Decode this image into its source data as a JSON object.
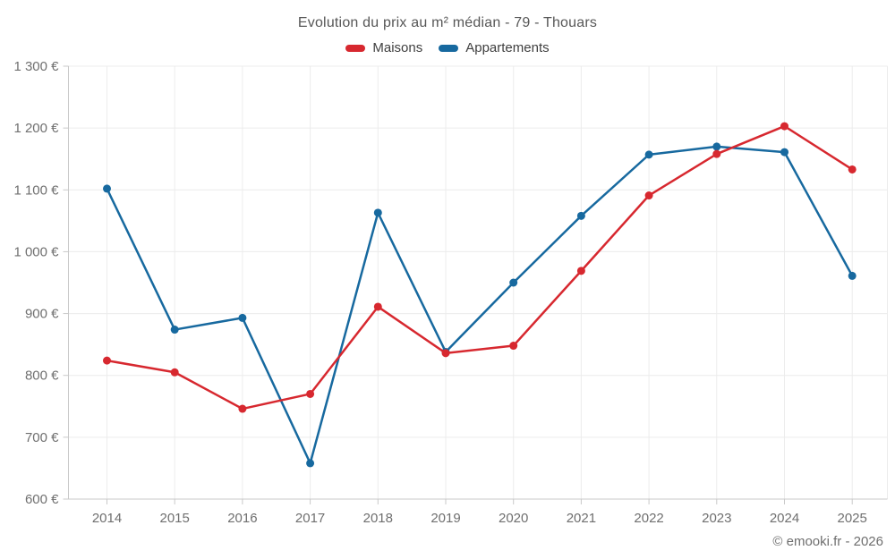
{
  "chart_data": {
    "type": "line",
    "title": "Evolution du prix au m² médian - 79 - Thouars",
    "categories": [
      "2014",
      "2015",
      "2016",
      "2017",
      "2018",
      "2019",
      "2020",
      "2021",
      "2022",
      "2023",
      "2024",
      "2025"
    ],
    "series": [
      {
        "name": "Maisons",
        "color": "#d7282f",
        "values": [
          824,
          805,
          746,
          770,
          911,
          836,
          848,
          969,
          1091,
          1158,
          1203,
          1133
        ]
      },
      {
        "name": "Appartements",
        "color": "#17699f",
        "values": [
          1102,
          874,
          893,
          658,
          1063,
          838,
          950,
          1058,
          1157,
          1170,
          1161,
          961
        ]
      }
    ],
    "ylim": [
      600,
      1300
    ],
    "y_ticks": [
      {
        "value": 600,
        "label": "600 €"
      },
      {
        "value": 700,
        "label": "700 €"
      },
      {
        "value": 800,
        "label": "800 €"
      },
      {
        "value": 900,
        "label": "900 €"
      },
      {
        "value": 1000,
        "label": "1 000 €"
      },
      {
        "value": 1100,
        "label": "1 100 €"
      },
      {
        "value": 1200,
        "label": "1 200 €"
      },
      {
        "value": 1300,
        "label": "1 300 €"
      }
    ],
    "grid": true,
    "legend_position": "top",
    "footer": "© emooki.fr - 2026",
    "colors": {
      "grid_line": "#ececec",
      "axis_line": "#c9c9c9",
      "axis_text": "#6f6f6f",
      "title_text": "#575757"
    }
  }
}
